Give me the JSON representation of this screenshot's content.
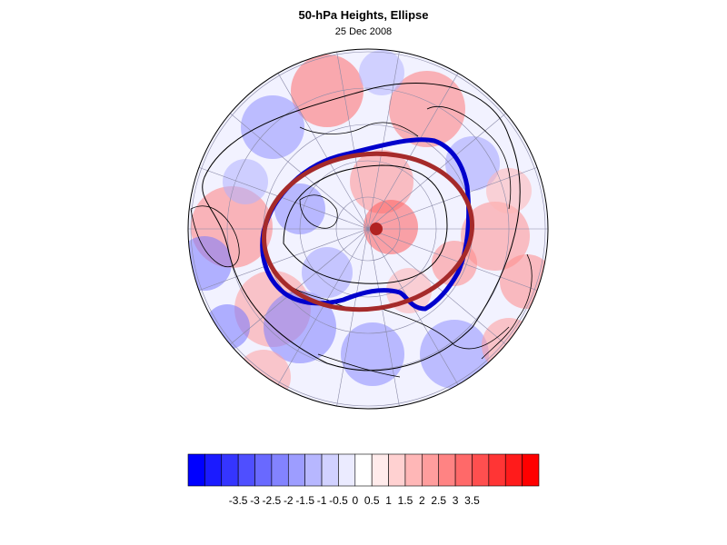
{
  "title": "50-hPa Heights, Ellipse",
  "subtitle": "25 Dec 2008",
  "map": {
    "projection": "polar stereographic (north pole)",
    "colors": {
      "blue_contour": "#0000cc",
      "red_ellipse": "#a52a2a",
      "center_dot": "#b22222",
      "coast": "#000000",
      "grid": "#8a8aa8"
    }
  },
  "colorbar": {
    "colors": [
      "#0000ff",
      "#1b1bff",
      "#3535ff",
      "#4f4fff",
      "#6969ff",
      "#8383ff",
      "#9d9dff",
      "#b7b7ff",
      "#d1d1ff",
      "#ebebff",
      "#ffffff",
      "#ffebeb",
      "#ffd1d1",
      "#ffb7b7",
      "#ff9d9d",
      "#ff8383",
      "#ff6969",
      "#ff4f4f",
      "#ff3535",
      "#ff1b1b",
      "#ff0000"
    ],
    "tick_labels": [
      "-3.5",
      "-3",
      "-2.5",
      "-2",
      "-1.5",
      "-1",
      "-0.5",
      "0",
      "0.5",
      "1",
      "1.5",
      "2",
      "2.5",
      "3",
      "3.5"
    ]
  }
}
